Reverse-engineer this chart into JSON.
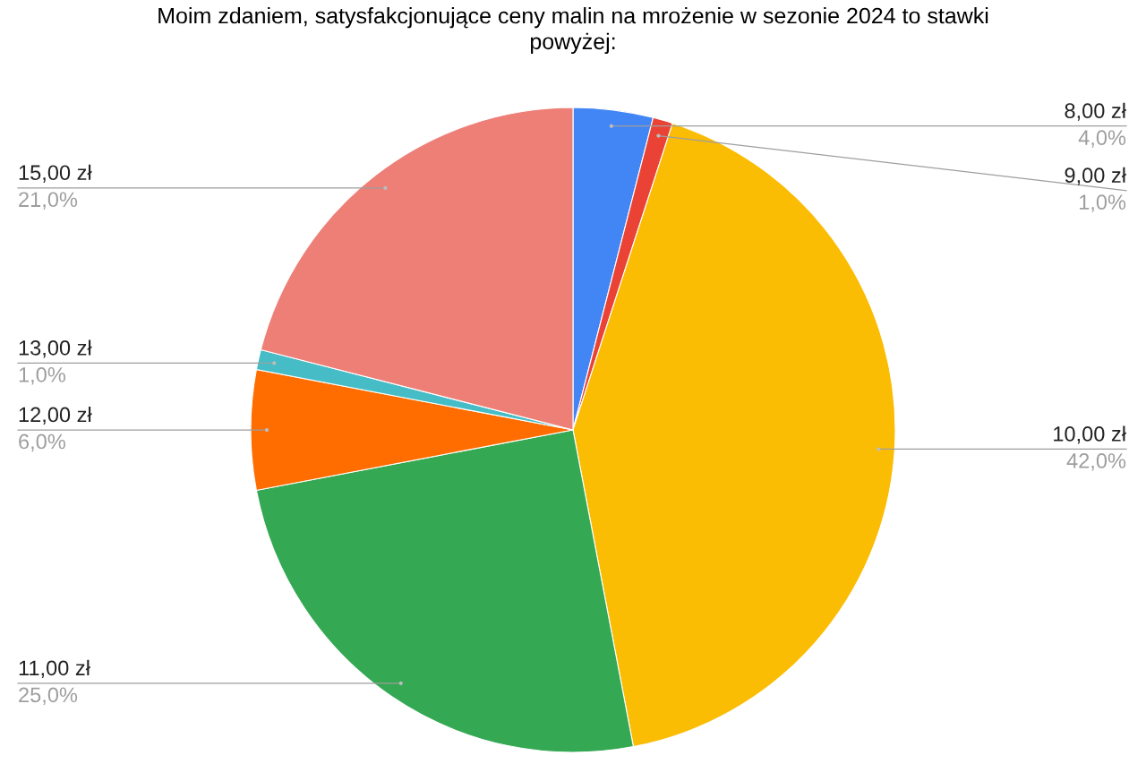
{
  "chart_data": {
    "type": "pie",
    "title": "Moim zdaniem, satysfakcjonujące ceny malin na mrożenie w sezonie 2024 to stawki\npowyżej:",
    "categories": [
      "8,00 zł",
      "9,00 zł",
      "10,00 zł",
      "11,00 zł",
      "12,00 zł",
      "13,00 zł",
      "15,00 zł"
    ],
    "values": [
      4.0,
      1.0,
      42.0,
      25.0,
      6.0,
      1.0,
      21.0
    ],
    "colors": [
      "#4285f4",
      "#ea4335",
      "#fbbc04",
      "#34a853",
      "#ff6d01",
      "#46bdc6",
      "#ee7f77"
    ],
    "value_labels": [
      "4,0%",
      "1,0%",
      "42,0%",
      "25,0%",
      "6,0%",
      "1,0%",
      "21,0%"
    ],
    "legend": false
  }
}
